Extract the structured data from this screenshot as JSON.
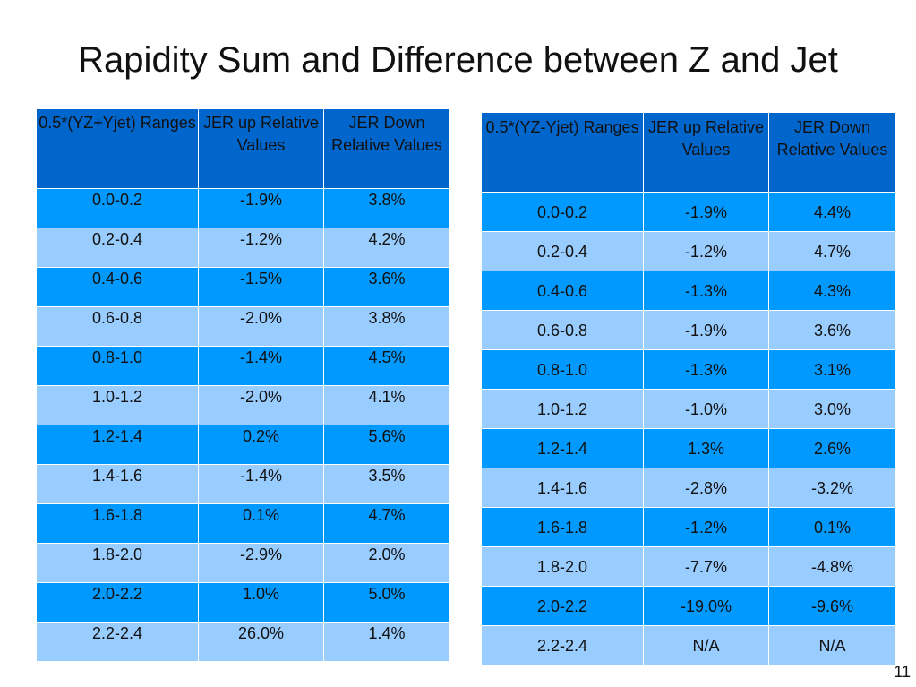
{
  "title": "Rapidity Sum and Difference between Z and Jet",
  "left_table": {
    "headers": [
      "0.5*(YZ+Yjet) Ranges",
      "JER up Relative Values",
      "JER Down Relative Values"
    ],
    "rows": [
      [
        "0.0-0.2",
        "-1.9%",
        "3.8%"
      ],
      [
        "0.2-0.4",
        "-1.2%",
        "4.2%"
      ],
      [
        "0.4-0.6",
        "-1.5%",
        "3.6%"
      ],
      [
        "0.6-0.8",
        "-2.0%",
        "3.8%"
      ],
      [
        "0.8-1.0",
        "-1.4%",
        "4.5%"
      ],
      [
        "1.0-1.2",
        "-2.0%",
        "4.1%"
      ],
      [
        "1.2-1.4",
        "0.2%",
        "5.6%"
      ],
      [
        "1.4-1.6",
        "-1.4%",
        "3.5%"
      ],
      [
        "1.6-1.8",
        "0.1%",
        "4.7%"
      ],
      [
        "1.8-2.0",
        "-2.9%",
        "2.0%"
      ],
      [
        "2.0-2.2",
        "1.0%",
        "5.0%"
      ],
      [
        "2.2-2.4",
        "26.0%",
        "1.4%"
      ]
    ]
  },
  "right_table": {
    "headers": [
      "0.5*(YZ-Yjet) Ranges",
      "JER up Relative Values",
      "JER Down Relative Values"
    ],
    "rows": [
      [
        "0.0-0.2",
        "-1.9%",
        "4.4%"
      ],
      [
        "0.2-0.4",
        "-1.2%",
        "4.7%"
      ],
      [
        "0.4-0.6",
        "-1.3%",
        "4.3%"
      ],
      [
        "0.6-0.8",
        "-1.9%",
        "3.6%"
      ],
      [
        "0.8-1.0",
        "-1.3%",
        "3.1%"
      ],
      [
        "1.0-1.2",
        "-1.0%",
        "3.0%"
      ],
      [
        "1.2-1.4",
        "1.3%",
        "2.6%"
      ],
      [
        "1.4-1.6",
        "-2.8%",
        "-3.2%"
      ],
      [
        "1.6-1.8",
        "-1.2%",
        "0.1%"
      ],
      [
        "1.8-2.0",
        "-7.7%",
        "-4.8%"
      ],
      [
        "2.0-2.2",
        "-19.0%",
        "-9.6%"
      ],
      [
        "2.2-2.4",
        "N/A",
        "N/A"
      ]
    ]
  },
  "page_number": "11",
  "colors": {
    "header_bg": "#0066cc",
    "row_dark": "#0099ff",
    "row_light": "#99ccff"
  }
}
